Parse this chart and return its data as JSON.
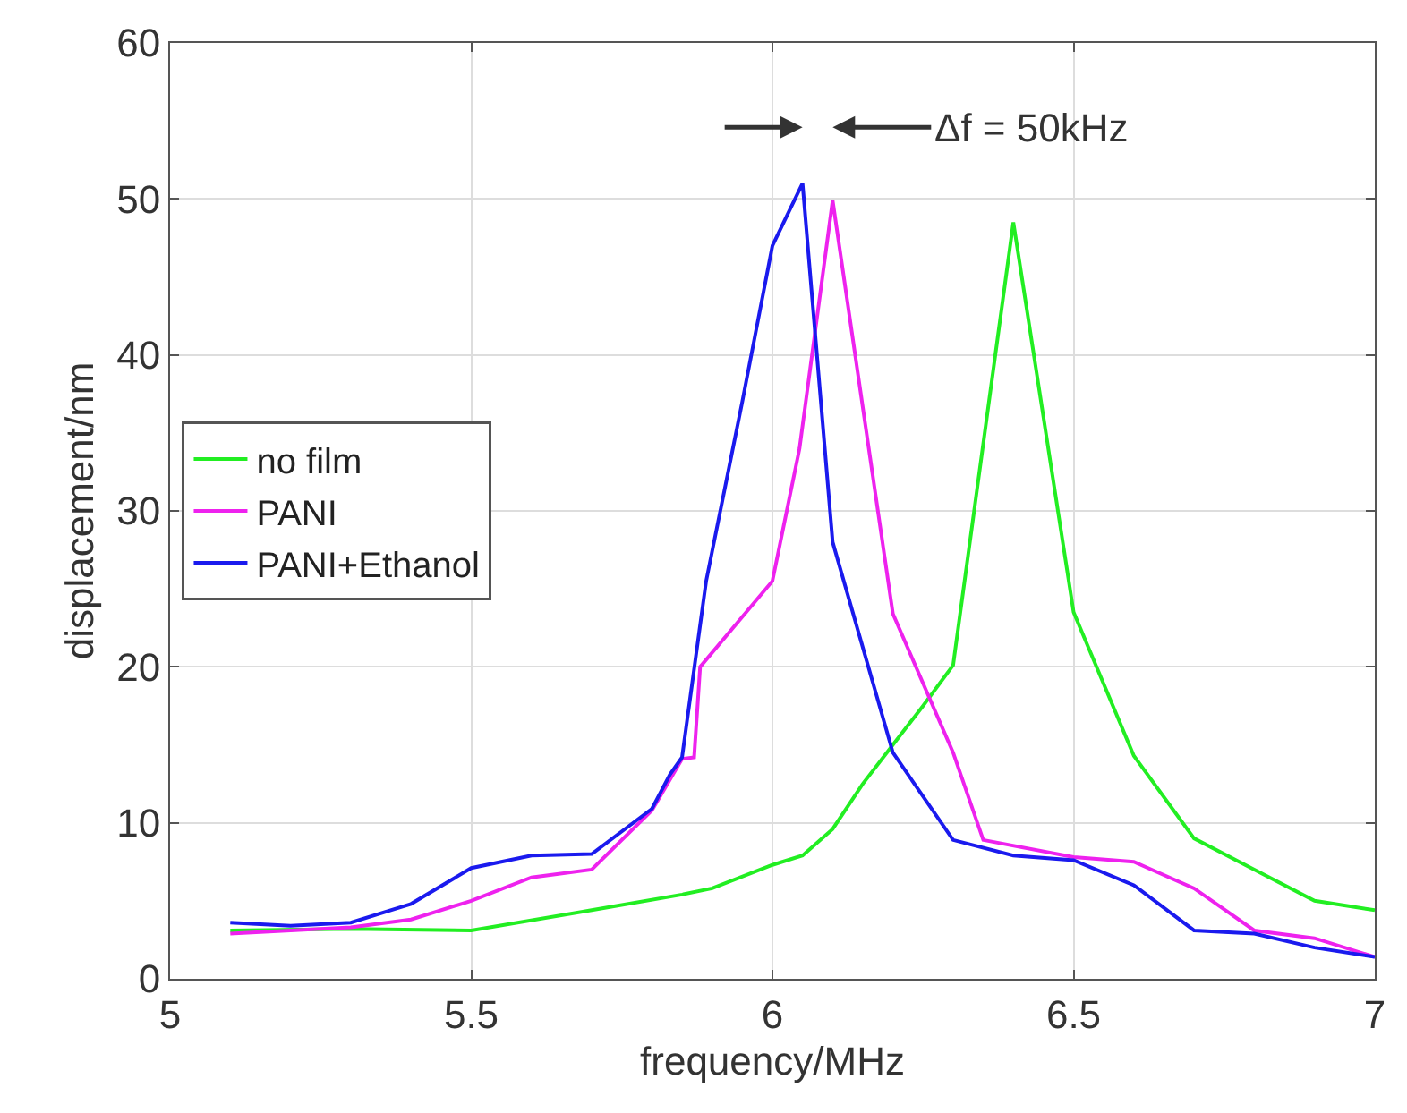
{
  "chart_data": {
    "type": "line",
    "xlabel": "frequency/MHz",
    "ylabel": "displacement/nm",
    "xlim": [
      5,
      7
    ],
    "ylim": [
      0,
      60
    ],
    "xticks": [
      5,
      5.5,
      6,
      6.5,
      7
    ],
    "yticks": [
      0,
      10,
      20,
      30,
      40,
      50,
      60
    ],
    "grid": true,
    "legend": "left",
    "line_style": "solid",
    "marker": "none",
    "annotations": [
      "Δf = 50kHz"
    ],
    "series": [
      {
        "name": "no film",
        "color": "#22ee22",
        "x": [
          5.1,
          5.3,
          5.5,
          5.7,
          5.85,
          5.9,
          6.0,
          6.05,
          6.1,
          6.15,
          6.2,
          6.25,
          6.3,
          6.4,
          6.5,
          6.6,
          6.7,
          6.8,
          6.9,
          7.0
        ],
        "values": [
          3.1,
          3.2,
          3.1,
          4.4,
          5.4,
          5.8,
          7.3,
          7.9,
          9.6,
          12.5,
          15,
          17.5,
          20.1,
          48.5,
          23.5,
          14.3,
          9.0,
          7.0,
          5.0,
          4.4
        ]
      },
      {
        "name": "PANI",
        "color": "#ee22ee",
        "x": [
          5.1,
          5.3,
          5.4,
          5.5,
          5.6,
          5.7,
          5.8,
          5.85,
          5.87,
          5.88,
          6.0,
          6.045,
          6.1,
          6.2,
          6.3,
          6.35,
          6.5,
          6.6,
          6.7,
          6.8,
          6.9,
          7.0
        ],
        "values": [
          2.9,
          3.3,
          3.8,
          5.0,
          6.5,
          7.0,
          10.8,
          14.1,
          14.2,
          20,
          25.5,
          34,
          49.9,
          23.4,
          14.5,
          8.9,
          7.8,
          7.5,
          5.8,
          3.1,
          2.6,
          1.4
        ]
      },
      {
        "name": "PANI+Ethanol",
        "color": "#1a1aee",
        "x": [
          5.1,
          5.2,
          5.3,
          5.4,
          5.5,
          5.6,
          5.7,
          5.8,
          5.83,
          5.85,
          5.89,
          5.95,
          6.0,
          6.05,
          6.1,
          6.2,
          6.3,
          6.4,
          6.5,
          6.6,
          6.7,
          6.8,
          6.9,
          7.0
        ],
        "values": [
          3.6,
          3.4,
          3.6,
          4.8,
          7.1,
          7.9,
          8.0,
          10.9,
          13.1,
          14.2,
          25.5,
          37,
          47,
          51,
          28,
          14.5,
          8.9,
          7.9,
          7.6,
          6.0,
          3.1,
          2.9,
          2.0,
          1.4
        ]
      }
    ]
  }
}
